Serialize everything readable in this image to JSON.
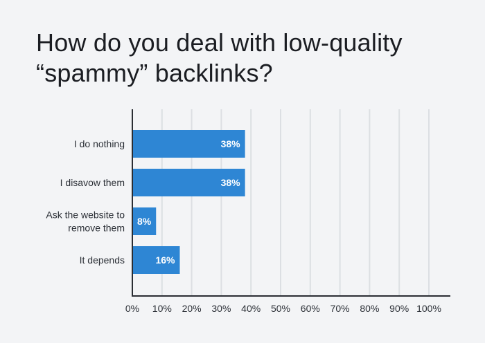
{
  "title_lines": [
    "How do you deal with low-quality",
    "“spammy” backlinks?"
  ],
  "chart_data": {
    "type": "bar",
    "orientation": "horizontal",
    "title": "How do you deal with low-quality “spammy” backlinks?",
    "categories": [
      [
        "I do nothing"
      ],
      [
        "I disavow them"
      ],
      [
        "Ask the website to",
        "remove them"
      ],
      [
        "It depends"
      ]
    ],
    "values": [
      38,
      38,
      8,
      16
    ],
    "value_labels": [
      "38%",
      "38%",
      "8%",
      "16%"
    ],
    "xlim": [
      0,
      100
    ],
    "xticks": [
      "0%",
      "10%",
      "20%",
      "30%",
      "40%",
      "50%",
      "60%",
      "70%",
      "80%",
      "90%",
      "100%"
    ],
    "xlabel": "",
    "ylabel": "",
    "grid": true,
    "colors": {
      "bar": "#2e86d4",
      "grid": "#dcdfe3",
      "axis": "#2a2d33"
    }
  }
}
